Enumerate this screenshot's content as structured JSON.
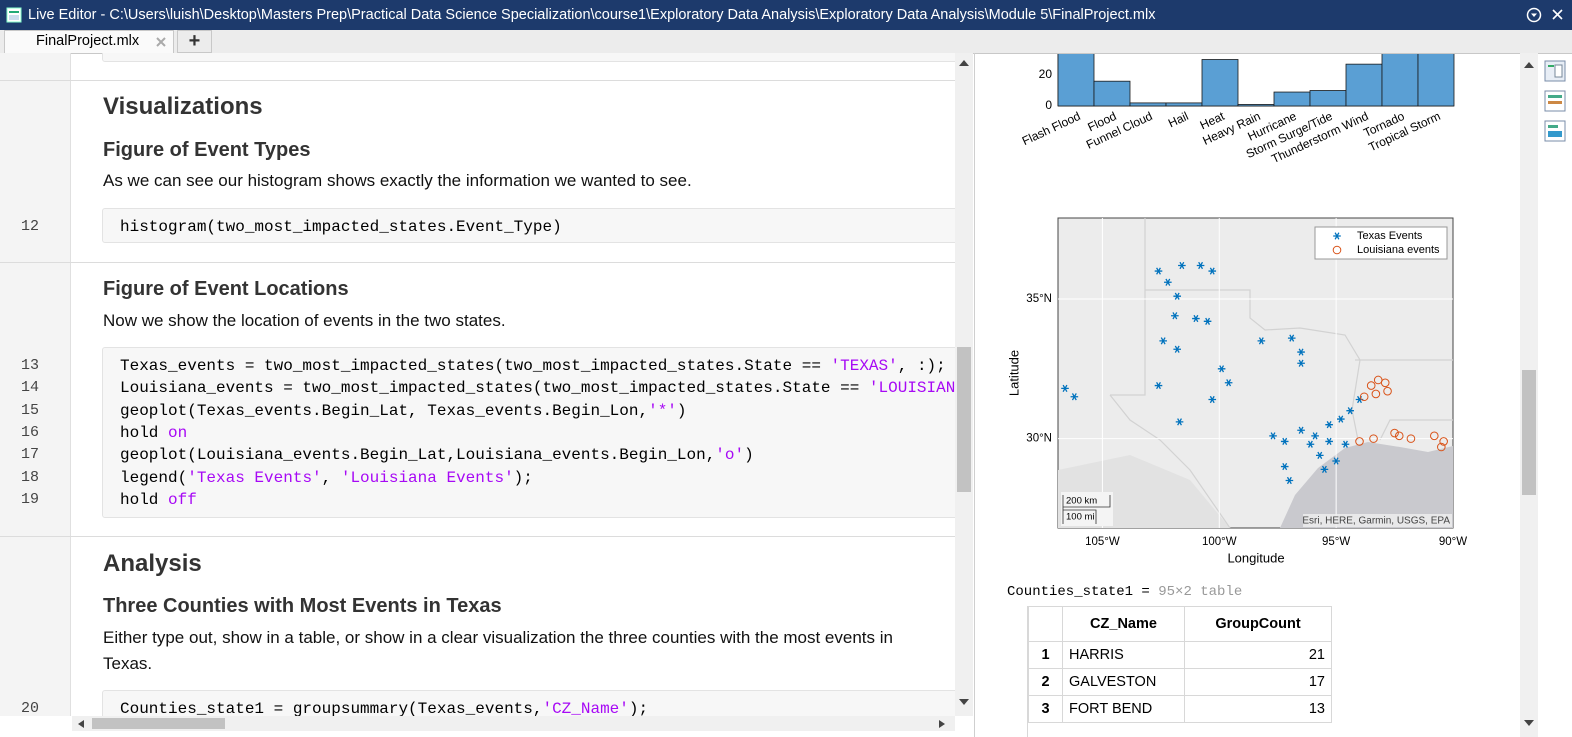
{
  "window": {
    "title": "Live Editor - C:\\Users\\luish\\Desktop\\Masters Prep\\Practical Data Science Specialization\\course1\\Exploratory Data Analysis\\Exploratory Data Analysis\\Module 5\\FinalProject.mlx",
    "tab": "FinalProject.mlx",
    "new_tab_button": "+"
  },
  "editor": {
    "sections": [
      {
        "heading": "Visualizations",
        "subheading": "Figure of Event Types",
        "text": "As we can see our histogram shows exactly the information we wanted to see.",
        "code": [
          {
            "line": 12,
            "segments": [
              {
                "text": "histogram(two_most_impacted_states.Event_Type)"
              }
            ]
          }
        ]
      },
      {
        "subheading": "Figure of Event Locations",
        "text": "Now we show the location of events in the two states.",
        "code": [
          {
            "line": 13,
            "segments": [
              {
                "text": "Texas_events = two_most_impacted_states(two_most_impacted_states.State == "
              },
              {
                "text": "'TEXAS'",
                "color": "#a709f5"
              },
              {
                "text": ", :);"
              }
            ]
          },
          {
            "line": 14,
            "segments": [
              {
                "text": "Louisiana_events = two_most_impacted_states(two_most_impacted_states.State == "
              },
              {
                "text": "'LOUISIAN",
                "color": "#a709f5"
              }
            ]
          },
          {
            "line": 15,
            "segments": [
              {
                "text": "geoplot(Texas_events.Begin_Lat, Texas_events.Begin_Lon,"
              },
              {
                "text": "'*'",
                "color": "#a709f5"
              },
              {
                "text": ")"
              }
            ]
          },
          {
            "line": 16,
            "segments": [
              {
                "text": "hold "
              },
              {
                "text": "on",
                "color": "#a709f5"
              }
            ]
          },
          {
            "line": 17,
            "segments": [
              {
                "text": "geoplot(Louisiana_events.Begin_Lat,Louisiana_events.Begin_Lon,"
              },
              {
                "text": "'o'",
                "color": "#a709f5"
              },
              {
                "text": ")"
              }
            ]
          },
          {
            "line": 18,
            "segments": [
              {
                "text": "legend("
              },
              {
                "text": "'Texas Events'",
                "color": "#a709f5"
              },
              {
                "text": ", "
              },
              {
                "text": "'Louisiana Events'",
                "color": "#a709f5"
              },
              {
                "text": ");"
              }
            ]
          },
          {
            "line": 19,
            "segments": [
              {
                "text": "hold "
              },
              {
                "text": "off",
                "color": "#a709f5"
              }
            ]
          }
        ]
      },
      {
        "heading": "Analysis",
        "subheading": "Three Counties with Most Events in Texas",
        "text": "Either type out, show in a table, or show in a clear visualization the three counties with the most events in Texas.",
        "code": [
          {
            "line": 20,
            "segments": [
              {
                "text": "Counties_state1 = groupsummary(Texas_events,"
              },
              {
                "text": "'CZ_Name'",
                "color": "#a709f5"
              },
              {
                "text": ");"
              }
            ]
          }
        ]
      }
    ]
  },
  "output": {
    "histogram": {
      "type": "bar",
      "color": "#5a9fd4",
      "categories": [
        "Flash Flood",
        "Flood",
        "Funnel Cloud",
        "Hail",
        "Heat",
        "Heavy Rain",
        "Hurricane",
        "Storm Surge/Tide",
        "Thunderstorm Wind",
        "Tornado",
        "Tropical Storm"
      ],
      "values": [
        40,
        16,
        2,
        2,
        30,
        1,
        9,
        10,
        27,
        34,
        35
      ],
      "yticks": [
        0,
        20
      ]
    },
    "map": {
      "type": "scatter",
      "xlabel": "Longitude",
      "ylabel": "Latitude",
      "xlim": [
        -106.9,
        -90
      ],
      "ylim": [
        26.8,
        37.9
      ],
      "xticks": [
        {
          "value": -105,
          "label": "105°W"
        },
        {
          "value": -100,
          "label": "100°W"
        },
        {
          "value": -95,
          "label": "95°W"
        },
        {
          "value": -90,
          "label": "90°W"
        }
      ],
      "yticks": [
        {
          "value": 30,
          "label": "30°N"
        },
        {
          "value": 35,
          "label": "35°N"
        }
      ],
      "scale_km": "200 km",
      "scale_mi": "100 mi",
      "attribution": "Esri, HERE, Garmin, USGS, EPA",
      "series": [
        {
          "name": "Texas Events",
          "color": "#0072bd",
          "marker": "*",
          "lon": [
            -102.6,
            -101.6,
            -100.8,
            -100.3,
            -102.2,
            -101.8,
            -101.9,
            -101.0,
            -100.5,
            -102.4,
            -101.8,
            -102.6,
            -101.7,
            -106.6,
            -106.2,
            -99.9,
            -99.6,
            -100.3,
            -98.2,
            -96.9,
            -96.5,
            -96.5,
            -97.7,
            -97.2,
            -96.5,
            -96.1,
            -95.7,
            -95.3,
            -95.0,
            -95.5,
            -97.0,
            -97.2,
            -94.8,
            -94.4,
            -94.0,
            -95.3,
            -95.9,
            -94.6
          ],
          "lat": [
            36.0,
            36.2,
            36.2,
            36.0,
            35.6,
            35.1,
            34.4,
            34.3,
            34.2,
            33.5,
            33.2,
            31.9,
            30.6,
            31.8,
            31.5,
            32.5,
            32.0,
            31.4,
            33.5,
            33.6,
            33.1,
            32.7,
            30.1,
            29.9,
            30.3,
            29.8,
            29.4,
            29.9,
            29.2,
            28.9,
            28.5,
            29.0,
            30.7,
            31.0,
            31.4,
            30.5,
            30.1,
            29.8
          ]
        },
        {
          "name": "Louisiana events",
          "color": "#d95319",
          "marker": "o",
          "lon": [
            -93.5,
            -93.2,
            -92.9,
            -93.3,
            -93.8,
            -92.8,
            -94.0,
            -93.4,
            -92.5,
            -92.3,
            -91.8,
            -90.8,
            -90.4,
            -90.5
          ],
          "lat": [
            31.9,
            32.1,
            32.0,
            31.6,
            31.5,
            31.7,
            29.9,
            30.0,
            30.2,
            30.1,
            30.0,
            30.1,
            29.9,
            29.7
          ]
        }
      ]
    },
    "variable": "Counties_state1 = ",
    "variable_size": "95×2 table",
    "table": {
      "headers": [
        "CZ_Name",
        "GroupCount"
      ],
      "rows": [
        [
          1,
          "HARRIS",
          21
        ],
        [
          2,
          "GALVESTON",
          17
        ],
        [
          3,
          "FORT BEND",
          13
        ]
      ]
    }
  }
}
